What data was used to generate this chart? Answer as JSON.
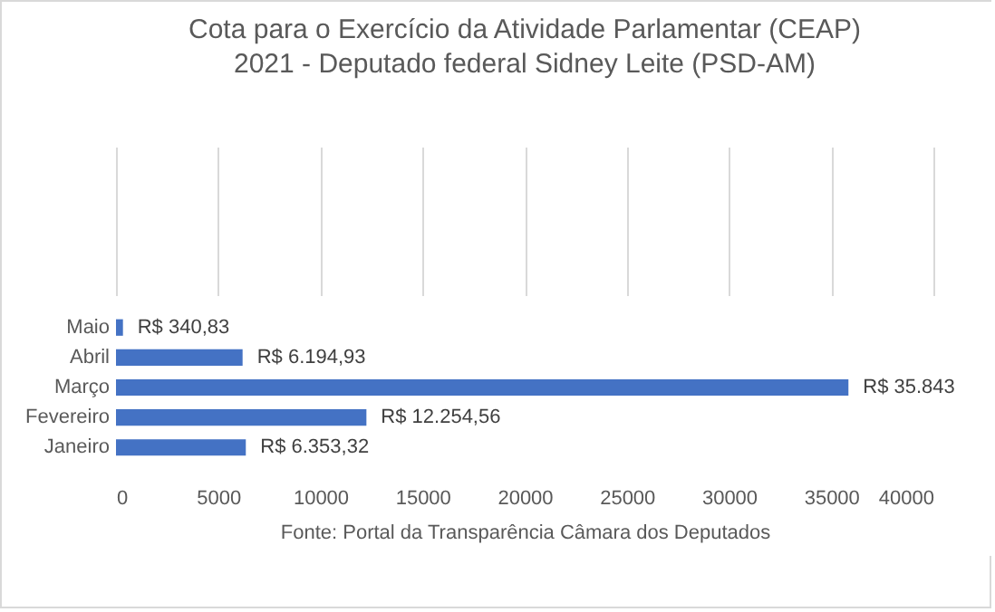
{
  "chart_data": {
    "type": "bar",
    "orientation": "horizontal",
    "title": "Cota para o Exercício da Atividade Parlamentar (CEAP)",
    "subtitle": "2021 - Deputado federal Sidney Leite (PSD-AM)",
    "categories": [
      "Maio",
      "Abril",
      "Março",
      "Fevereiro",
      "Janeiro"
    ],
    "values": [
      340.83,
      6194.93,
      35843,
      12254.56,
      6353.32
    ],
    "value_labels": [
      "R$ 340,83",
      "R$ 6.194,93",
      "R$ 35.843",
      "R$ 12.254,56",
      "R$ 6.353,32"
    ],
    "color": "#4472c4",
    "xlim": [
      0,
      40000
    ],
    "xticks": [
      0,
      5000,
      10000,
      15000,
      20000,
      25000,
      30000,
      35000,
      40000
    ],
    "grid": "x",
    "annotations": [
      "Fonte:  Portal da Transparência Câmara dos Deputados"
    ]
  }
}
